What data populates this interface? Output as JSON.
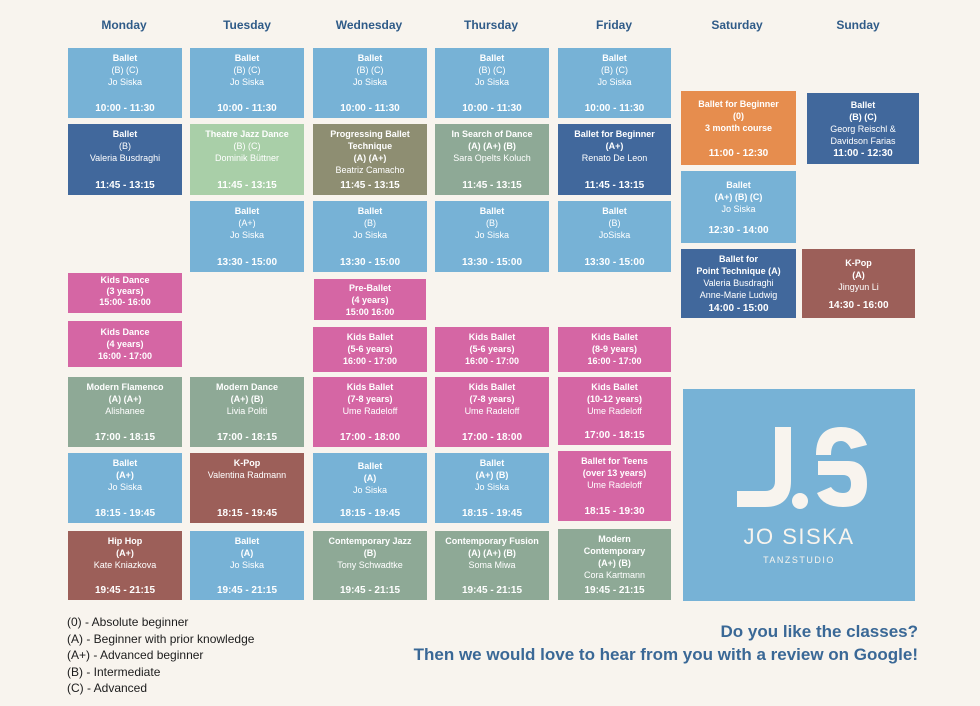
{
  "days": [
    "Monday",
    "Tuesday",
    "Wednesday",
    "Thursday",
    "Friday",
    "Saturday",
    "Sunday"
  ],
  "classes": {
    "mon": [
      {
        "title": "Ballet",
        "level": "(B) (C)",
        "teacher": "Jo Siska",
        "time": "10:00 - 11:30"
      },
      {
        "title": "Ballet",
        "level": "(B)",
        "teacher": "Valeria Busdraghi",
        "time": "11:45 - 13:15"
      },
      {
        "title": "Kids Dance",
        "level": "(3 years)",
        "time": "15:00- 16:00"
      },
      {
        "title": "Kids Dance",
        "level": "(4 years)",
        "time": "16:00 - 17:00"
      },
      {
        "title": "Modern Flamenco",
        "level": "(A) (A+)",
        "teacher": "Alishanee",
        "time": "17:00 - 18:15"
      },
      {
        "title": "Ballet",
        "level": "(A+)",
        "teacher": "Jo Siska",
        "time": "18:15 - 19:45"
      },
      {
        "title": "Hip Hop",
        "level": "(A+)",
        "teacher": "Kate Kniazkova",
        "time": "19:45 - 21:15"
      }
    ],
    "tue": [
      {
        "title": "Ballet",
        "level": "(B) (C)",
        "teacher": "Jo Siska",
        "time": "10:00 - 11:30"
      },
      {
        "title": "Theatre Jazz Dance",
        "level": "(B) (C)",
        "teacher": "Dominik Büttner",
        "time": "11:45 - 13:15"
      },
      {
        "title": "Ballet",
        "level": "(A+)",
        "teacher": "Jo Siska",
        "time": "13:30 - 15:00"
      },
      {
        "title": "Modern Dance",
        "level": "(A+) (B)",
        "teacher": "Livia Politi",
        "time": "17:00 - 18:15"
      },
      {
        "title": "K-Pop",
        "teacher": "Valentina Radmann",
        "time": "18:15 - 19:45"
      },
      {
        "title": "Ballet",
        "level": "(A)",
        "teacher": "Jo Siska",
        "time": "19:45 - 21:15"
      }
    ],
    "wed": [
      {
        "title": "Ballet",
        "level": "(B) (C)",
        "teacher": "Jo Siska",
        "time": "10:00 - 11:30"
      },
      {
        "title": "Progressing Ballet",
        "title2": "Technique",
        "level": "(A) (A+)",
        "teacher": "Beatriz Camacho",
        "time": "11:45 - 13:15"
      },
      {
        "title": "Ballet",
        "level": "(B)",
        "teacher": "Jo Siska",
        "time": "13:30 - 15:00"
      },
      {
        "title": "Pre-Ballet",
        "level": "(4 years)",
        "time": "15:00 16:00"
      },
      {
        "title": "Kids Ballet",
        "level": "(5-6 years)",
        "time": "16:00 - 17:00"
      },
      {
        "title": "Kids Ballet",
        "level": "(7-8 years)",
        "teacher": "Ume Radeloff",
        "time": "17:00 - 18:00"
      },
      {
        "title": "Ballet",
        "level": "(A)",
        "teacher": "Jo Siska",
        "time": "18:15 - 19:45"
      },
      {
        "title": "Contemporary Jazz",
        "level": "(B)",
        "teacher": "Tony Schwadtke",
        "time": "19:45 - 21:15"
      }
    ],
    "thu": [
      {
        "title": "Ballet",
        "level": "(B) (C)",
        "teacher": "Jo Siska",
        "time": "10:00 - 11:30"
      },
      {
        "title": "In Search of Dance",
        "level": "(A) (A+) (B)",
        "teacher": "Sara Opelts Koluch",
        "time": "11:45 - 13:15"
      },
      {
        "title": "Ballet",
        "level": "(B)",
        "teacher": "Jo Siska",
        "time": "13:30 - 15:00"
      },
      {
        "title": "Kids Ballet",
        "level": "(5-6 years)",
        "time": "16:00 - 17:00"
      },
      {
        "title": "Kids Ballet",
        "level": "(7-8 years)",
        "teacher": "Ume Radeloff",
        "time": "17:00 - 18:00"
      },
      {
        "title": "Ballet",
        "level": "(A+) (B)",
        "teacher": "Jo Siska",
        "time": "18:15 - 19:45"
      },
      {
        "title": "Contemporary Fusion",
        "level": "(A) (A+) (B)",
        "teacher": "Soma Miwa",
        "time": "19:45 - 21:15"
      }
    ],
    "fri": [
      {
        "title": "Ballet",
        "level": "(B) (C)",
        "teacher": "Jo Siska",
        "time": "10:00 - 11:30"
      },
      {
        "title": "Ballet for Beginner",
        "level": "(A+)",
        "teacher": "Renato De Leon",
        "time": "11:45 - 13:15"
      },
      {
        "title": "Ballet",
        "level": "(B)",
        "teacher": "JoSiska",
        "time": "13:30 - 15:00"
      },
      {
        "title": "Kids Ballet",
        "level": "(8-9 years)",
        "time": "16:00 - 17:00"
      },
      {
        "title": "Kids Ballet",
        "level": "(10-12 years)",
        "teacher": "Ume Radeloff",
        "time": "17:00 - 18:15"
      },
      {
        "title": "Ballet for Teens",
        "level": "(over 13 years)",
        "teacher": "Ume Radeloff",
        "time": "18:15 - 19:30"
      },
      {
        "title": "Modern",
        "title2": "Contemporary",
        "level": "(A+) (B)",
        "teacher": "Cora Kartmann",
        "time": "19:45 - 21:15"
      }
    ],
    "sat": [
      {
        "title": "Ballet for Beginner",
        "level": "(0)",
        "note": "3 month course",
        "time": "11:00 - 12:30"
      },
      {
        "title": "Ballet",
        "level": "(A+) (B) (C)",
        "teacher": "Jo Siska",
        "time": "12:30 - 14:00"
      },
      {
        "title": "Ballet for",
        "title2": "Point Technique (A)",
        "teacher": "Valeria Busdraghi",
        "teacher2": "Anne-Marie Ludwig",
        "time": "14:00 - 15:00"
      }
    ],
    "sun": [
      {
        "title": "Ballet",
        "level": "(B) (C)",
        "teacher": "Georg Reischl &",
        "teacher2": "Davidson Farias",
        "time": "11:00 - 12:30"
      },
      {
        "title": "K-Pop",
        "level": "(A)",
        "teacher": "Jingyun Li",
        "time": "14:30 - 16:00"
      }
    ]
  },
  "legend": [
    "(0) - Absolute beginner",
    "(A) - Beginner with prior knowledge",
    "(A+) - Advanced beginner",
    "(B) - Intermediate",
    "(C) - Advanced"
  ],
  "promo": {
    "line1": "Do you like the classes?",
    "line2": "Then we would love to hear from you with a review on Google!"
  },
  "logo": {
    "name": "JO SISKA",
    "subtitle": "TANZSTUDIO"
  }
}
